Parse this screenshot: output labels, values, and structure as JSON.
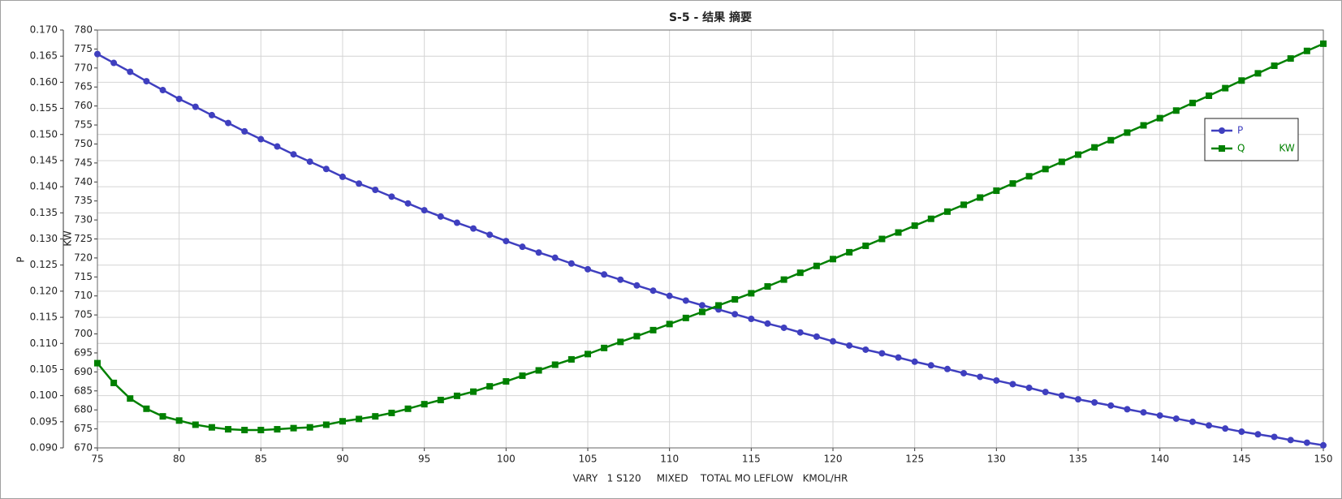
{
  "chart_data": {
    "type": "line",
    "title": "S-5 - 结果 摘要",
    "xlabel": "VARY   1 S120     MIXED    TOTAL MO LEFLOW   KMOL/HR",
    "ylabel": "P",
    "y2label": "KW",
    "x": [
      75,
      76,
      77,
      78,
      79,
      80,
      81,
      82,
      83,
      84,
      85,
      86,
      87,
      88,
      89,
      90,
      91,
      92,
      93,
      94,
      95,
      96,
      97,
      98,
      99,
      100,
      101,
      102,
      103,
      104,
      105,
      106,
      107,
      108,
      109,
      110,
      111,
      112,
      113,
      114,
      115,
      116,
      117,
      118,
      119,
      120,
      121,
      122,
      123,
      124,
      125,
      126,
      127,
      128,
      129,
      130,
      131,
      132,
      133,
      134,
      135,
      136,
      137,
      138,
      139,
      140,
      141,
      142,
      143,
      144,
      145,
      146,
      147,
      148,
      149,
      150
    ],
    "series": [
      {
        "name": "P",
        "color": "#3f3fbf",
        "marker": "circle",
        "values": [
          0.1654,
          0.1637,
          0.162,
          0.1602,
          0.1585,
          0.1568,
          0.1553,
          0.1537,
          0.1522,
          0.1506,
          0.1491,
          0.1477,
          0.1462,
          0.1448,
          0.1434,
          0.1419,
          0.1406,
          0.1394,
          0.1381,
          0.1368,
          0.1355,
          0.1343,
          0.1331,
          0.132,
          0.1308,
          0.1296,
          0.1285,
          0.1274,
          0.1264,
          0.1253,
          0.1242,
          0.1232,
          0.1222,
          0.1211,
          0.1201,
          0.1191,
          0.1182,
          0.1173,
          0.1165,
          0.1156,
          0.1147,
          0.1138,
          0.113,
          0.1121,
          0.1113,
          0.1104,
          0.1096,
          0.1088,
          0.1081,
          0.1073,
          0.1065,
          0.1058,
          0.1051,
          0.1043,
          0.1036,
          0.1029,
          0.1022,
          0.1015,
          0.1007,
          0.1,
          0.0993,
          0.0987,
          0.0981,
          0.0974,
          0.0968,
          0.0962,
          0.0956,
          0.095,
          0.0943,
          0.0937,
          0.0931,
          0.0926,
          0.0921,
          0.0915,
          0.091,
          0.0905
        ]
      },
      {
        "name": "Q           KW",
        "color": "#008000",
        "marker": "square",
        "axis": "y2",
        "values": [
          692.3,
          687.1,
          683.0,
          680.3,
          678.3,
          677.2,
          676.1,
          675.4,
          674.9,
          674.7,
          674.7,
          674.9,
          675.2,
          675.4,
          676.1,
          677.0,
          677.6,
          678.3,
          679.2,
          680.3,
          681.5,
          682.6,
          683.7,
          684.8,
          686.2,
          687.5,
          689.0,
          690.4,
          691.9,
          693.3,
          694.7,
          696.3,
          697.9,
          699.4,
          701.0,
          702.6,
          704.2,
          705.8,
          707.5,
          709.1,
          710.7,
          712.5,
          714.3,
          716.1,
          717.9,
          719.7,
          721.5,
          723.2,
          725.0,
          726.7,
          728.5,
          730.3,
          732.2,
          734.0,
          735.9,
          737.7,
          739.6,
          741.5,
          743.4,
          745.3,
          747.2,
          749.1,
          751.0,
          753.0,
          754.9,
          756.8,
          758.8,
          760.8,
          762.7,
          764.7,
          766.7,
          768.6,
          770.6,
          772.5,
          774.5,
          776.4
        ]
      }
    ],
    "xlim": [
      75,
      150
    ],
    "xticks": [
      75,
      80,
      85,
      90,
      95,
      100,
      105,
      110,
      115,
      120,
      125,
      130,
      135,
      140,
      145,
      150
    ],
    "ylim": [
      0.09,
      0.17
    ],
    "yticks": [
      {
        "value": 0.09,
        "label": "0.090"
      },
      0.095,
      {
        "value": 0.1,
        "label": "0.100"
      },
      0.105,
      {
        "value": 0.11,
        "label": "0.110"
      },
      0.115,
      {
        "value": 0.12,
        "label": "0.120"
      },
      0.125,
      {
        "value": 0.13,
        "label": "0.130"
      },
      0.135,
      {
        "value": 0.14,
        "label": "0.140"
      },
      0.145,
      {
        "value": 0.15,
        "label": "0.150"
      },
      0.155,
      {
        "value": 0.16,
        "label": "0.160"
      },
      0.165,
      {
        "value": 0.17,
        "label": "0.170"
      }
    ],
    "y2lim": [
      670,
      780
    ],
    "y2ticks": [
      670,
      675,
      680,
      685,
      690,
      695,
      700,
      705,
      710,
      715,
      720,
      725,
      730,
      735,
      740,
      745,
      750,
      755,
      760,
      765,
      770,
      775,
      780
    ],
    "grid": true,
    "legend": "upper right"
  }
}
